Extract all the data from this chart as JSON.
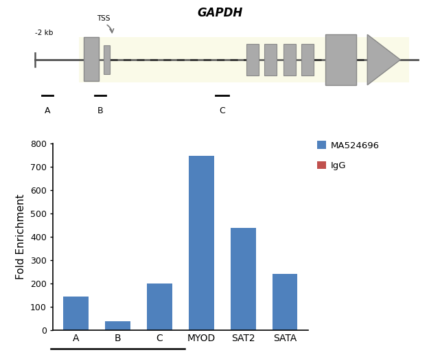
{
  "title": "GAPDH",
  "ylabel": "Fold Enrichment",
  "categories": [
    "A",
    "B",
    "C",
    "MYOD",
    "SAT2",
    "SATA"
  ],
  "values_ma": [
    145,
    38,
    200,
    748,
    440,
    243
  ],
  "bar_color_ma": "#4f81bd",
  "bar_color_igg": "#c0504d",
  "ylim": [
    0,
    800
  ],
  "yticks": [
    0,
    100,
    200,
    300,
    400,
    500,
    600,
    700,
    800
  ],
  "legend_ma": "MA524696",
  "legend_igg": "IgG",
  "gapdh_label": "GAPDH",
  "background_color": "#ffffff",
  "gene_diagram_bg": "#fafae8",
  "gene_color": "#aaaaaa",
  "gene_edge": "#888888",
  "line_color": "#555555"
}
